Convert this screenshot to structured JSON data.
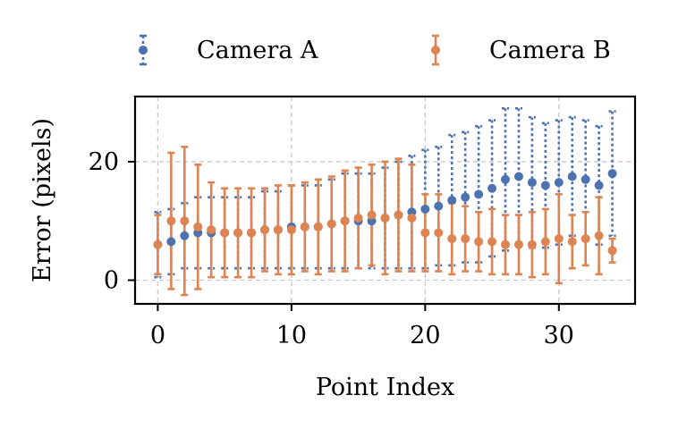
{
  "chart_data": {
    "type": "scatter",
    "xlabel": "Point Index",
    "ylabel": "Error (pixels)",
    "xlim": [
      -1.7,
      35.7
    ],
    "ylim": [
      -4,
      31
    ],
    "xticks": [
      0,
      10,
      20,
      30
    ],
    "yticks": [
      0,
      20
    ],
    "grid": true,
    "grid_style": "dashed",
    "legend_position": "top-center",
    "legend": [
      "Camera A",
      "Camera B"
    ],
    "x": [
      0,
      1,
      2,
      3,
      4,
      5,
      6,
      7,
      8,
      9,
      10,
      11,
      12,
      13,
      14,
      15,
      16,
      17,
      18,
      19,
      20,
      21,
      22,
      23,
      24,
      25,
      26,
      27,
      28,
      29,
      30,
      31,
      32,
      33,
      34
    ],
    "series": [
      {
        "name": "Camera A",
        "color": "#4c72b0",
        "errorbar_style": "dotted",
        "y": [
          6.0,
          6.5,
          7.5,
          8.0,
          8.0,
          8.0,
          8.0,
          8.0,
          8.5,
          8.5,
          9.0,
          9.0,
          9.0,
          9.5,
          10.0,
          10.0,
          10.0,
          10.5,
          11.0,
          11.5,
          12.0,
          12.5,
          13.5,
          14.0,
          14.5,
          15.5,
          17.0,
          17.5,
          16.5,
          16.0,
          16.5,
          17.5,
          17.0,
          16.0,
          18.0
        ],
        "err": [
          5.5,
          5.5,
          5.5,
          6.0,
          6.0,
          6.0,
          6.0,
          6.0,
          6.5,
          6.5,
          7.0,
          7.0,
          7.0,
          7.5,
          8.0,
          8.0,
          8.0,
          8.5,
          9.0,
          9.5,
          10.0,
          10.0,
          11.0,
          11.0,
          11.5,
          11.5,
          12.0,
          11.5,
          11.0,
          10.5,
          10.5,
          10.0,
          10.0,
          10.0,
          10.5
        ]
      },
      {
        "name": "Camera B",
        "color": "#dd8452",
        "errorbar_style": "solid",
        "y": [
          6.0,
          10.0,
          10.0,
          9.0,
          8.5,
          8.0,
          8.0,
          8.0,
          8.5,
          8.5,
          8.5,
          9.0,
          9.0,
          9.5,
          10.0,
          10.5,
          11.0,
          10.5,
          11.0,
          10.5,
          8.0,
          8.0,
          7.0,
          7.0,
          6.5,
          6.5,
          6.0,
          6.0,
          6.0,
          6.5,
          7.0,
          6.5,
          7.0,
          7.5,
          5.0
        ],
        "err": [
          5.0,
          11.5,
          12.5,
          10.5,
          8.0,
          7.5,
          7.5,
          7.5,
          7.0,
          7.5,
          7.5,
          7.5,
          8.0,
          8.0,
          8.5,
          8.5,
          8.5,
          9.5,
          9.5,
          9.0,
          6.5,
          6.5,
          6.0,
          5.5,
          5.0,
          5.5,
          5.0,
          5.0,
          5.5,
          5.5,
          7.5,
          4.5,
          4.5,
          6.5,
          2.0
        ]
      }
    ]
  }
}
